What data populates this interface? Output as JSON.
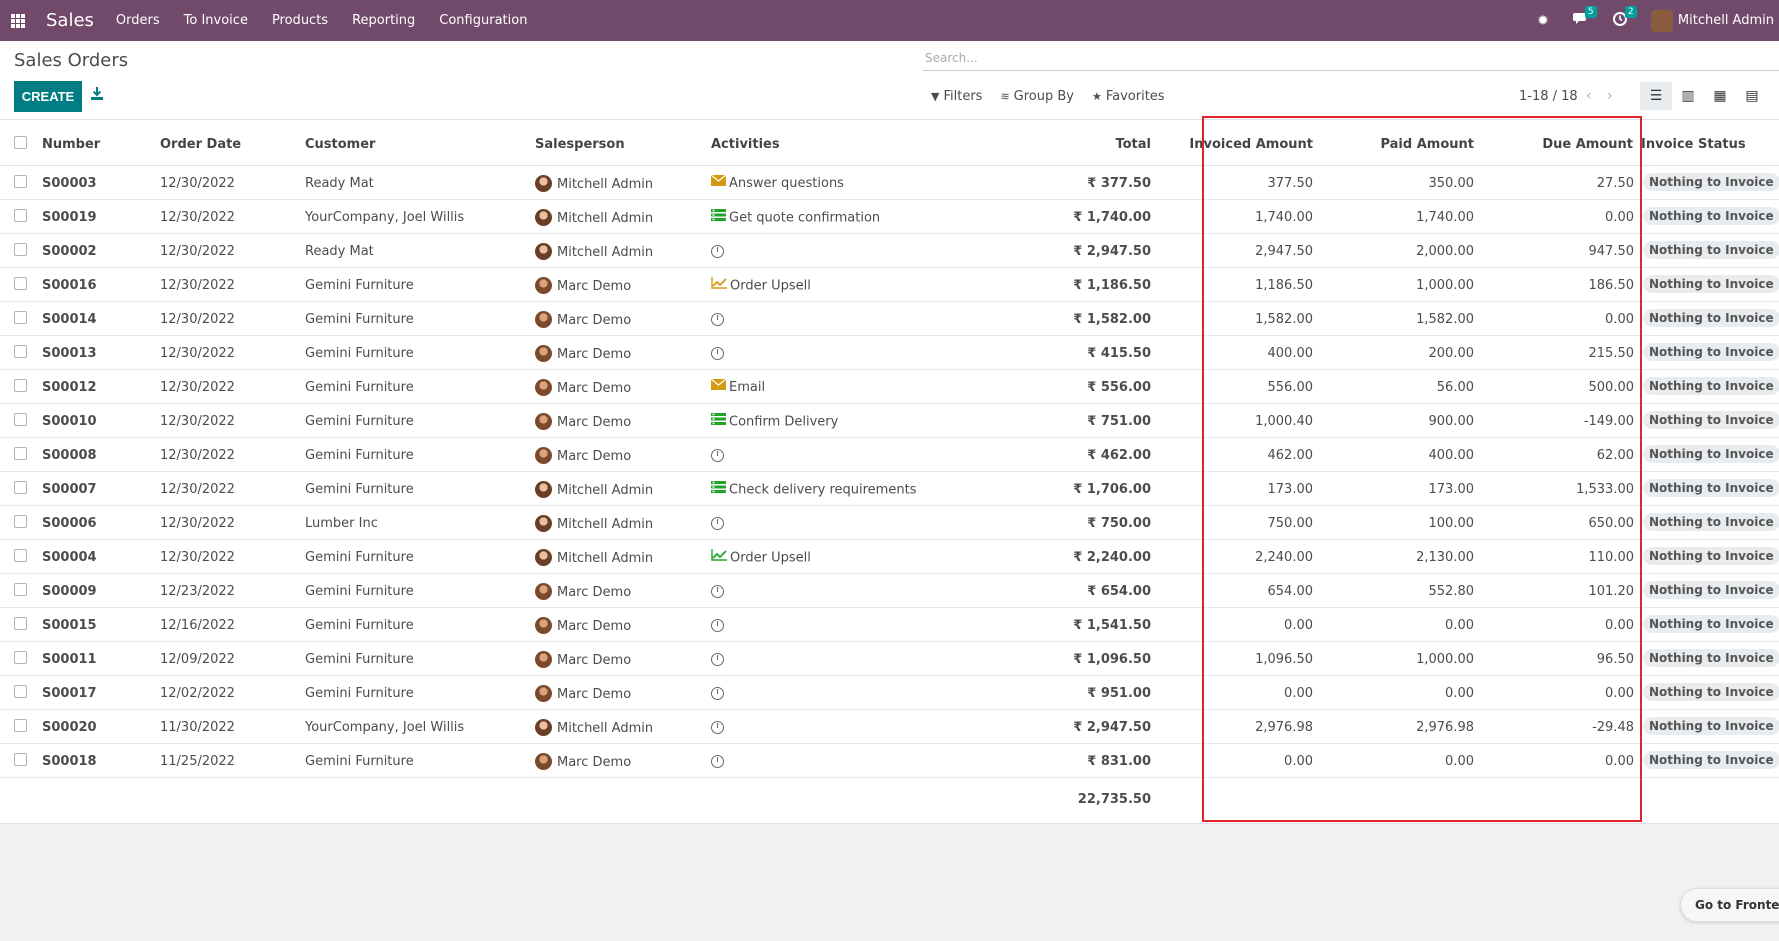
{
  "nav": {
    "brand": "Sales",
    "menu": [
      "Orders",
      "To Invoice",
      "Products",
      "Reporting",
      "Configuration"
    ],
    "chat_badge": "5",
    "activity_badge": "2",
    "user_name": "Mitchell Admin"
  },
  "control_panel": {
    "title": "Sales Orders",
    "create_label": "CREATE",
    "search_placeholder": "Search...",
    "filters_label": "Filters",
    "group_by_label": "Group By",
    "favorites_label": "Favorites",
    "pager": "1-18 / 18"
  },
  "table": {
    "headers": {
      "number": "Number",
      "order_date": "Order Date",
      "customer": "Customer",
      "salesperson": "Salesperson",
      "activities": "Activities",
      "total": "Total",
      "invoiced": "Invoiced Amount",
      "paid": "Paid Amount",
      "due": "Due Amount",
      "status": "Invoice Status"
    },
    "rows": [
      {
        "number": "S00003",
        "date": "12/30/2022",
        "customer": "Ready Mat",
        "salesperson": "Mitchell Admin",
        "activity": "Answer questions",
        "activity_icon": "envelope-icon",
        "total": "₹ 377.50",
        "invoiced": "377.50",
        "paid": "350.00",
        "due": "27.50",
        "status": "Nothing to Invoice"
      },
      {
        "number": "S00019",
        "date": "12/30/2022",
        "customer": "YourCompany, Joel Willis",
        "salesperson": "Mitchell Admin",
        "activity": "Get quote confirmation",
        "activity_icon": "tasks-icon",
        "total": "₹ 1,740.00",
        "invoiced": "1,740.00",
        "paid": "1,740.00",
        "due": "0.00",
        "status": "Nothing to Invoice"
      },
      {
        "number": "S00002",
        "date": "12/30/2022",
        "customer": "Ready Mat",
        "salesperson": "Mitchell Admin",
        "activity": "",
        "activity_icon": "clock-icon",
        "total": "₹ 2,947.50",
        "invoiced": "2,947.50",
        "paid": "2,000.00",
        "due": "947.50",
        "status": "Nothing to Invoice"
      },
      {
        "number": "S00016",
        "date": "12/30/2022",
        "customer": "Gemini Furniture",
        "salesperson": "Marc Demo",
        "activity": "Order Upsell",
        "activity_icon": "chart-icon",
        "total": "₹ 1,186.50",
        "invoiced": "1,186.50",
        "paid": "1,000.00",
        "due": "186.50",
        "status": "Nothing to Invoice"
      },
      {
        "number": "S00014",
        "date": "12/30/2022",
        "customer": "Gemini Furniture",
        "salesperson": "Marc Demo",
        "activity": "",
        "activity_icon": "clock-icon",
        "total": "₹ 1,582.00",
        "invoiced": "1,582.00",
        "paid": "1,582.00",
        "due": "0.00",
        "status": "Nothing to Invoice"
      },
      {
        "number": "S00013",
        "date": "12/30/2022",
        "customer": "Gemini Furniture",
        "salesperson": "Marc Demo",
        "activity": "",
        "activity_icon": "clock-icon",
        "total": "₹ 415.50",
        "invoiced": "400.00",
        "paid": "200.00",
        "due": "215.50",
        "status": "Nothing to Invoice"
      },
      {
        "number": "S00012",
        "date": "12/30/2022",
        "customer": "Gemini Furniture",
        "salesperson": "Marc Demo",
        "activity": "Email",
        "activity_icon": "envelope-icon",
        "total": "₹ 556.00",
        "invoiced": "556.00",
        "paid": "56.00",
        "due": "500.00",
        "status": "Nothing to Invoice"
      },
      {
        "number": "S00010",
        "date": "12/30/2022",
        "customer": "Gemini Furniture",
        "salesperson": "Marc Demo",
        "activity": "Confirm Delivery",
        "activity_icon": "tasks-icon",
        "total": "₹ 751.00",
        "invoiced": "1,000.40",
        "paid": "900.00",
        "due": "-149.00",
        "status": "Nothing to Invoice"
      },
      {
        "number": "S00008",
        "date": "12/30/2022",
        "customer": "Gemini Furniture",
        "salesperson": "Marc Demo",
        "activity": "",
        "activity_icon": "clock-icon",
        "total": "₹ 462.00",
        "invoiced": "462.00",
        "paid": "400.00",
        "due": "62.00",
        "status": "Nothing to Invoice"
      },
      {
        "number": "S00007",
        "date": "12/30/2022",
        "customer": "Gemini Furniture",
        "salesperson": "Mitchell Admin",
        "activity": "Check delivery requirements",
        "activity_icon": "tasks-icon",
        "total": "₹ 1,706.00",
        "invoiced": "173.00",
        "paid": "173.00",
        "due": "1,533.00",
        "status": "Nothing to Invoice"
      },
      {
        "number": "S00006",
        "date": "12/30/2022",
        "customer": "Lumber Inc",
        "salesperson": "Mitchell Admin",
        "activity": "",
        "activity_icon": "clock-icon",
        "total": "₹ 750.00",
        "invoiced": "750.00",
        "paid": "100.00",
        "due": "650.00",
        "status": "Nothing to Invoice"
      },
      {
        "number": "S00004",
        "date": "12/30/2022",
        "customer": "Gemini Furniture",
        "salesperson": "Mitchell Admin",
        "activity": "Order Upsell",
        "activity_icon": "chart-icon",
        "total": "₹ 2,240.00",
        "invoiced": "2,240.00",
        "paid": "2,130.00",
        "due": "110.00",
        "status": "Nothing to Invoice"
      },
      {
        "number": "S00009",
        "date": "12/23/2022",
        "customer": "Gemini Furniture",
        "salesperson": "Marc Demo",
        "activity": "",
        "activity_icon": "clock-icon",
        "total": "₹ 654.00",
        "invoiced": "654.00",
        "paid": "552.80",
        "due": "101.20",
        "status": "Nothing to Invoice"
      },
      {
        "number": "S00015",
        "date": "12/16/2022",
        "customer": "Gemini Furniture",
        "salesperson": "Marc Demo",
        "activity": "",
        "activity_icon": "clock-icon",
        "total": "₹ 1,541.50",
        "invoiced": "0.00",
        "paid": "0.00",
        "due": "0.00",
        "status": "Nothing to Invoice"
      },
      {
        "number": "S00011",
        "date": "12/09/2022",
        "customer": "Gemini Furniture",
        "salesperson": "Marc Demo",
        "activity": "",
        "activity_icon": "clock-icon",
        "total": "₹ 1,096.50",
        "invoiced": "1,096.50",
        "paid": "1,000.00",
        "due": "96.50",
        "status": "Nothing to Invoice"
      },
      {
        "number": "S00017",
        "date": "12/02/2022",
        "customer": "Gemini Furniture",
        "salesperson": "Marc Demo",
        "activity": "",
        "activity_icon": "clock-icon",
        "total": "₹ 951.00",
        "invoiced": "0.00",
        "paid": "0.00",
        "due": "0.00",
        "status": "Nothing to Invoice"
      },
      {
        "number": "S00020",
        "date": "11/30/2022",
        "customer": "YourCompany, Joel Willis",
        "salesperson": "Mitchell Admin",
        "activity": "",
        "activity_icon": "clock-icon",
        "total": "₹ 2,947.50",
        "invoiced": "2,976.98",
        "paid": "2,976.98",
        "due": "-29.48",
        "status": "Nothing to Invoice"
      },
      {
        "number": "S00018",
        "date": "11/25/2022",
        "customer": "Gemini Furniture",
        "salesperson": "Marc Demo",
        "activity": "",
        "activity_icon": "clock-icon",
        "total": "₹ 831.00",
        "invoiced": "0.00",
        "paid": "0.00",
        "due": "0.00",
        "status": "Nothing to Invoice"
      }
    ],
    "grand_total": "22,735.50"
  },
  "frontend_button": "Go to Frontend",
  "colors": {
    "nav_bg": "#71496a",
    "primary": "#017e84",
    "highlight": "#e0242b"
  }
}
